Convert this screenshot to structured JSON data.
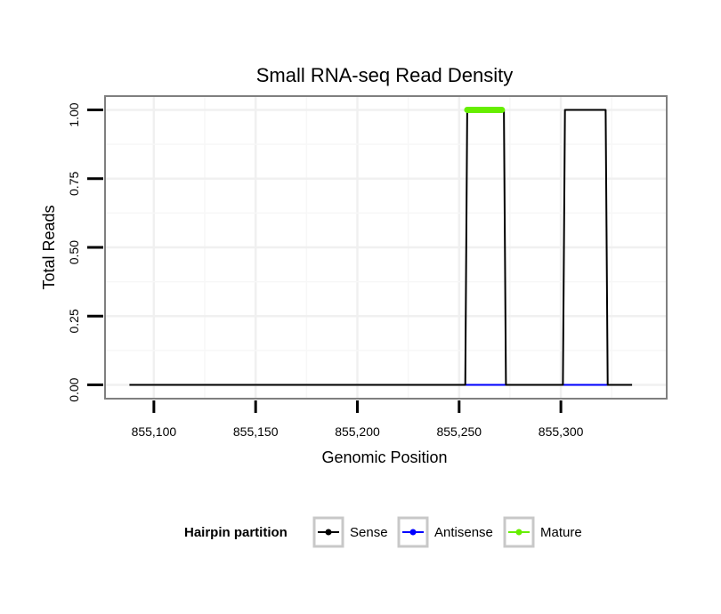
{
  "chart_data": {
    "type": "line",
    "title": "Small RNA-seq Read Density",
    "xlabel": "Genomic Position",
    "ylabel": "Total Reads",
    "xlim": [
      855076,
      855352
    ],
    "ylim": [
      -0.05,
      1.05
    ],
    "x_ticks": [
      855100,
      855150,
      855200,
      855250,
      855300
    ],
    "x_tick_labels": [
      "855,100",
      "855,150",
      "855,200",
      "855,250",
      "855,300"
    ],
    "y_ticks": [
      0,
      0.25,
      0.5,
      0.75,
      1.0
    ],
    "y_tick_labels": [
      "0.00",
      "0.25",
      "0.50",
      "0.75",
      "1.00"
    ],
    "grid": true,
    "legend": {
      "title": "Hairpin partition",
      "position": "bottom",
      "entries": [
        {
          "label": "Sense",
          "color": "#000000"
        },
        {
          "label": "Antisense",
          "color": "#0000ff"
        },
        {
          "label": "Mature",
          "color": "#66ee00"
        }
      ]
    },
    "series": [
      {
        "name": "Sense",
        "color": "#000000",
        "points": [
          [
            855088,
            0
          ],
          [
            855253,
            0
          ],
          [
            855254,
            1
          ],
          [
            855272,
            1
          ],
          [
            855273,
            0
          ],
          [
            855301,
            0
          ],
          [
            855302,
            1
          ],
          [
            855322,
            1
          ],
          [
            855323,
            0
          ],
          [
            855335,
            0
          ]
        ]
      },
      {
        "name": "Antisense",
        "color": "#0000ff",
        "points": [
          [
            855253,
            0
          ],
          [
            855273,
            0
          ],
          [
            855301,
            0
          ],
          [
            855323,
            0
          ]
        ]
      },
      {
        "name": "Mature",
        "color": "#66ee00",
        "points": [
          [
            855254,
            1
          ],
          [
            855271,
            1
          ]
        ]
      }
    ]
  }
}
